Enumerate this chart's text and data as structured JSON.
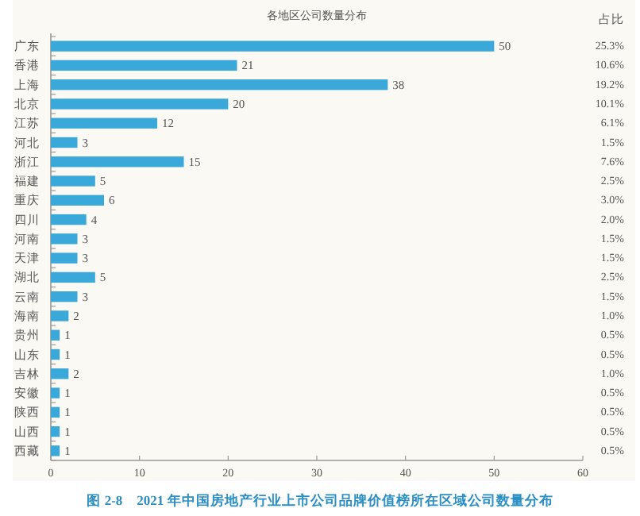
{
  "chart_data": {
    "type": "bar",
    "orientation": "horizontal",
    "title": "各地区公司数量分布",
    "categories": [
      "广东",
      "香港",
      "上海",
      "北京",
      "江苏",
      "河北",
      "浙江",
      "福建",
      "重庆",
      "四川",
      "河南",
      "天津",
      "湖北",
      "云南",
      "海南",
      "贵州",
      "山东",
      "吉林",
      "安徽",
      "陕西",
      "山西",
      "西藏"
    ],
    "values": [
      50,
      21,
      38,
      20,
      12,
      3,
      15,
      5,
      6,
      4,
      3,
      3,
      5,
      3,
      2,
      1,
      1,
      2,
      1,
      1,
      1,
      1
    ],
    "color": "#3aa8d8",
    "data_labels": true,
    "grid": false,
    "xlim": [
      0,
      60
    ],
    "xticks": [
      0,
      10,
      20,
      30,
      40,
      50,
      60
    ],
    "annotations": [
      "占比",
      "25.3%",
      "10.6%",
      "19.2%",
      "10.1%",
      "6.1%",
      "1.5%",
      "7.6%",
      "2.5%",
      "3.0%",
      "2.0%",
      "1.5%",
      "1.5%",
      "2.5%",
      "1.5%",
      "1.0%",
      "0.5%",
      "0.5%",
      "1.0%",
      "0.5%",
      "0.5%",
      "0.5%",
      "0.5%",
      "图 2-8　2021 年中国房地产行业上市公司品牌价值榜所在区域公司数量分布"
    ]
  }
}
